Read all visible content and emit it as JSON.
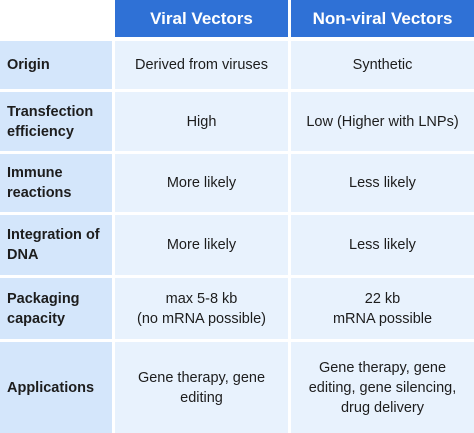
{
  "header": {
    "col1": "Viral Vectors",
    "col2": "Non-viral Vectors"
  },
  "rows": [
    {
      "label": "Origin",
      "viral": [
        "Derived from viruses"
      ],
      "nonviral": [
        "Synthetic"
      ]
    },
    {
      "label_lines": [
        "Transfection",
        "efficiency"
      ],
      "viral": [
        "High"
      ],
      "nonviral": [
        "Low (Higher with LNPs)"
      ]
    },
    {
      "label_lines": [
        "Immune",
        "reactions"
      ],
      "viral": [
        "More likely"
      ],
      "nonviral": [
        "Less likely"
      ]
    },
    {
      "label_lines": [
        "Integration of",
        "DNA"
      ],
      "viral": [
        "More likely"
      ],
      "nonviral": [
        "Less likely"
      ]
    },
    {
      "label_lines": [
        "Packaging",
        "capacity"
      ],
      "viral": [
        "max 5-8 kb",
        "(no mRNA possible)"
      ],
      "nonviral": [
        "22 kb",
        "mRNA possible"
      ]
    },
    {
      "label": "Applications",
      "viral": [
        "Gene therapy, gene",
        "editing"
      ],
      "nonviral": [
        "Gene therapy, gene",
        "editing, gene silencing,",
        "drug delivery"
      ]
    }
  ],
  "colors": {
    "header_bg": "#2f71d6",
    "row_label_bg": "#d4e6fb",
    "cell_bg": "#e8f2fd"
  }
}
